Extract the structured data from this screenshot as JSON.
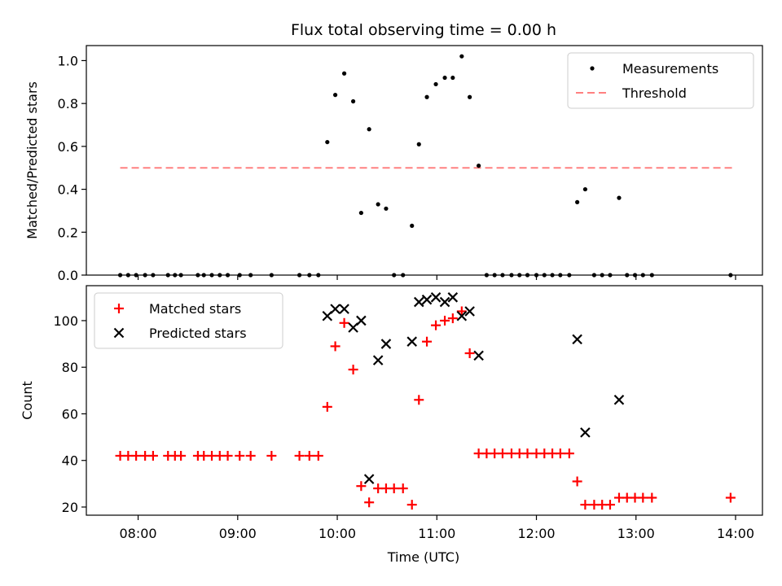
{
  "chart_data": {
    "type": "scatter",
    "title": "Flux total observing time = 0.00 h",
    "xlabel": "Time (UTC)",
    "x_ticks": [
      {
        "value": 8,
        "label": "08:00"
      },
      {
        "value": 9,
        "label": "09:00"
      },
      {
        "value": 10,
        "label": "10:00"
      },
      {
        "value": 11,
        "label": "11:00"
      },
      {
        "value": 12,
        "label": "12:00"
      },
      {
        "value": 13,
        "label": "13:00"
      },
      {
        "value": 14,
        "label": "14:00"
      }
    ],
    "xlim": [
      7.48,
      14.27
    ],
    "top": {
      "ylabel": "Matched/Predicted stars",
      "ylim": [
        0,
        1.07
      ],
      "y_ticks": [
        {
          "value": 0,
          "label": "0.0"
        },
        {
          "value": 0.2,
          "label": "0.2"
        },
        {
          "value": 0.4,
          "label": "0.4"
        },
        {
          "value": 0.6,
          "label": "0.6"
        },
        {
          "value": 0.8,
          "label": "0.8"
        },
        {
          "value": 1.0,
          "label": "1.0"
        }
      ],
      "legend": {
        "position": "top-right",
        "measurements_label": "Measurements",
        "threshold_label": "Threshold"
      },
      "threshold": {
        "value": 0.5,
        "x_range": [
          7.82,
          13.97
        ],
        "color": "#ff8080"
      },
      "measurements": [
        [
          7.82,
          0
        ],
        [
          7.9,
          0
        ],
        [
          7.98,
          0
        ],
        [
          8.07,
          0
        ],
        [
          8.15,
          0
        ],
        [
          8.3,
          0
        ],
        [
          8.37,
          0
        ],
        [
          8.43,
          0
        ],
        [
          8.6,
          0
        ],
        [
          8.66,
          0
        ],
        [
          8.74,
          0
        ],
        [
          8.82,
          0
        ],
        [
          8.9,
          0
        ],
        [
          9.02,
          0
        ],
        [
          9.13,
          0
        ],
        [
          9.34,
          0
        ],
        [
          9.62,
          0
        ],
        [
          9.72,
          0
        ],
        [
          9.81,
          0
        ],
        [
          9.9,
          0.62
        ],
        [
          9.98,
          0.84
        ],
        [
          10.07,
          0.94
        ],
        [
          10.16,
          0.81
        ],
        [
          10.24,
          0.29
        ],
        [
          10.32,
          0.68
        ],
        [
          10.41,
          0.33
        ],
        [
          10.49,
          0.31
        ],
        [
          10.57,
          0
        ],
        [
          10.66,
          0
        ],
        [
          10.75,
          0.23
        ],
        [
          10.82,
          0.61
        ],
        [
          10.9,
          0.83
        ],
        [
          10.99,
          0.89
        ],
        [
          11.08,
          0.92
        ],
        [
          11.16,
          0.92
        ],
        [
          11.25,
          1.02
        ],
        [
          11.33,
          0.83
        ],
        [
          11.42,
          0.51
        ],
        [
          11.5,
          0
        ],
        [
          11.58,
          0
        ],
        [
          11.66,
          0
        ],
        [
          11.75,
          0
        ],
        [
          11.83,
          0
        ],
        [
          11.91,
          0
        ],
        [
          12.0,
          0
        ],
        [
          12.08,
          0
        ],
        [
          12.16,
          0
        ],
        [
          12.24,
          0
        ],
        [
          12.33,
          0
        ],
        [
          12.41,
          0.34
        ],
        [
          12.49,
          0.4
        ],
        [
          12.58,
          0
        ],
        [
          12.66,
          0
        ],
        [
          12.74,
          0
        ],
        [
          12.83,
          0.36
        ],
        [
          12.91,
          0
        ],
        [
          12.99,
          0
        ],
        [
          13.07,
          0
        ],
        [
          13.16,
          0
        ],
        [
          13.95,
          0
        ]
      ]
    },
    "bottom": {
      "ylabel": "Count",
      "ylim": [
        16.5,
        115
      ],
      "y_ticks": [
        {
          "value": 20,
          "label": "20"
        },
        {
          "value": 40,
          "label": "40"
        },
        {
          "value": 60,
          "label": "60"
        },
        {
          "value": 80,
          "label": "80"
        },
        {
          "value": 100,
          "label": "100"
        }
      ],
      "legend": {
        "position": "top-left",
        "matched_label": "Matched stars",
        "predicted_label": "Predicted stars"
      },
      "colors": {
        "matched": "#ff0000",
        "predicted": "#000000"
      },
      "matched": [
        [
          7.82,
          42
        ],
        [
          7.9,
          42
        ],
        [
          7.98,
          42
        ],
        [
          8.07,
          42
        ],
        [
          8.15,
          42
        ],
        [
          8.3,
          42
        ],
        [
          8.37,
          42
        ],
        [
          8.43,
          42
        ],
        [
          8.6,
          42
        ],
        [
          8.66,
          42
        ],
        [
          8.74,
          42
        ],
        [
          8.82,
          42
        ],
        [
          8.9,
          42
        ],
        [
          9.02,
          42
        ],
        [
          9.13,
          42
        ],
        [
          9.34,
          42
        ],
        [
          9.62,
          42
        ],
        [
          9.72,
          42
        ],
        [
          9.81,
          42
        ],
        [
          9.9,
          63
        ],
        [
          9.98,
          89
        ],
        [
          10.07,
          99
        ],
        [
          10.16,
          79
        ],
        [
          10.24,
          29
        ],
        [
          10.32,
          22
        ],
        [
          10.41,
          28
        ],
        [
          10.49,
          28
        ],
        [
          10.57,
          28
        ],
        [
          10.66,
          28
        ],
        [
          10.75,
          21
        ],
        [
          10.82,
          66
        ],
        [
          10.9,
          91
        ],
        [
          10.99,
          98
        ],
        [
          11.08,
          100
        ],
        [
          11.16,
          101
        ],
        [
          11.25,
          104
        ],
        [
          11.33,
          86
        ],
        [
          11.42,
          43
        ],
        [
          11.5,
          43
        ],
        [
          11.58,
          43
        ],
        [
          11.66,
          43
        ],
        [
          11.75,
          43
        ],
        [
          11.83,
          43
        ],
        [
          11.91,
          43
        ],
        [
          12.0,
          43
        ],
        [
          12.08,
          43
        ],
        [
          12.16,
          43
        ],
        [
          12.24,
          43
        ],
        [
          12.33,
          43
        ],
        [
          12.41,
          31
        ],
        [
          12.49,
          21
        ],
        [
          12.58,
          21
        ],
        [
          12.66,
          21
        ],
        [
          12.74,
          21
        ],
        [
          12.83,
          24
        ],
        [
          12.91,
          24
        ],
        [
          12.99,
          24
        ],
        [
          13.07,
          24
        ],
        [
          13.16,
          24
        ],
        [
          13.95,
          24
        ]
      ],
      "predicted": [
        [
          9.9,
          102
        ],
        [
          9.98,
          105
        ],
        [
          10.07,
          105
        ],
        [
          10.16,
          97
        ],
        [
          10.24,
          100
        ],
        [
          10.32,
          32
        ],
        [
          10.41,
          83
        ],
        [
          10.49,
          90
        ],
        [
          10.75,
          91
        ],
        [
          10.82,
          108
        ],
        [
          10.9,
          109
        ],
        [
          10.99,
          110
        ],
        [
          11.08,
          108
        ],
        [
          11.16,
          110
        ],
        [
          11.25,
          102
        ],
        [
          11.33,
          104
        ],
        [
          11.42,
          85
        ],
        [
          12.41,
          92
        ],
        [
          12.49,
          52
        ],
        [
          12.83,
          66
        ]
      ]
    }
  }
}
